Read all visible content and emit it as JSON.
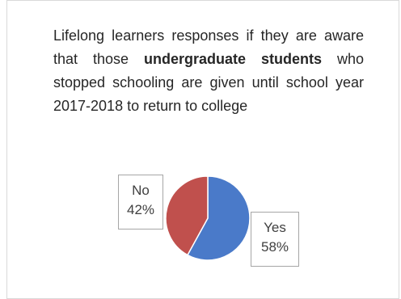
{
  "chart_data": {
    "type": "pie",
    "title_parts": {
      "p1": "Lifelong learners responses if they are aware that those ",
      "p2": "undergraduate students",
      "p3": " who stopped schooling are given until school year 2017-2018 to return to college"
    },
    "slices": [
      {
        "label": "Yes",
        "value": 58,
        "pct_text": "58%",
        "color": "#4a7ac9"
      },
      {
        "label": "No",
        "value": 42,
        "pct_text": "42%",
        "color": "#c0504d"
      }
    ]
  }
}
